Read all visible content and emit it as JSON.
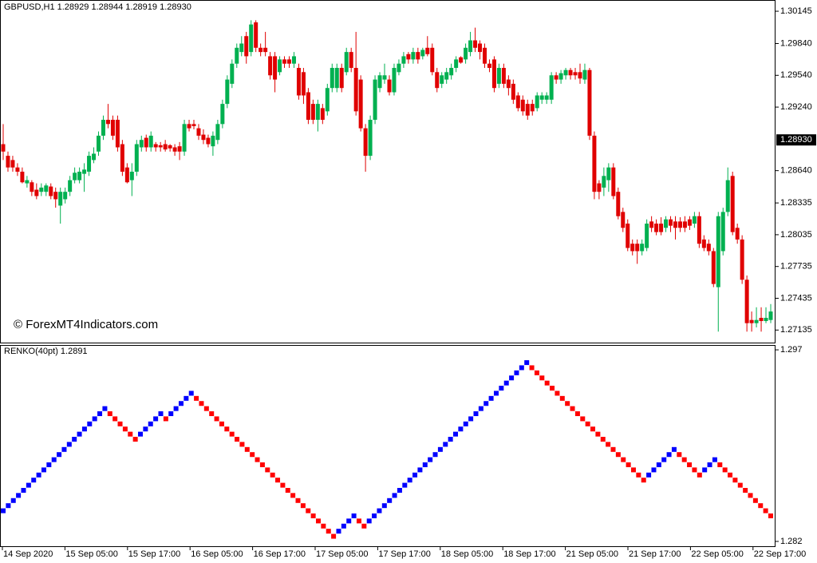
{
  "chart_data": [
    {
      "type": "candlestick",
      "title": "GBPUSD,H1 1.28929 1.28944 1.28919 1.28930",
      "watermark": "© ForexMT4Indicators.com",
      "up_color": "#00b050",
      "down_color": "#e00000",
      "ylim": [
        1.27009,
        1.30251
      ],
      "yticks": [
        1.30145,
        {
          "value": 1.2984,
          "label": "1.29840"
        },
        {
          "value": 1.2954,
          "label": "1.29540"
        },
        {
          "value": 1.2924,
          "label": "1.29240"
        },
        {
          "value": 1.2864,
          "label": "1.28640"
        },
        1.28335,
        1.28035,
        1.27735,
        1.27435,
        1.27135
      ],
      "current_price": {
        "value": 1.2893,
        "label": "1.28930"
      },
      "candles": [
        [
          1.2889,
          1.2908,
          1.2874,
          1.2882
        ],
        [
          1.2878,
          1.2882,
          1.2863,
          1.2867
        ],
        [
          1.2874,
          1.2878,
          1.2863,
          1.2867
        ],
        [
          1.2867,
          1.2871,
          1.2859,
          1.2863
        ],
        [
          1.2863,
          1.2867,
          1.2852,
          1.2853
        ],
        [
          1.2852,
          1.2859,
          1.2848,
          1.2855
        ],
        [
          1.2853,
          1.2855,
          1.284,
          1.2844
        ],
        [
          1.2846,
          1.2852,
          1.2837,
          1.284
        ],
        [
          1.2844,
          1.2852,
          1.284,
          1.2848
        ],
        [
          1.2844,
          1.2852,
          1.284,
          1.285
        ],
        [
          1.2849,
          1.2852,
          1.2837,
          1.284
        ],
        [
          1.2844,
          1.2848,
          1.2829,
          1.2837
        ],
        [
          1.2831,
          1.2848,
          1.2814,
          1.2844
        ],
        [
          1.2837,
          1.2848,
          1.2833,
          1.2844
        ],
        [
          1.2844,
          1.2859,
          1.284,
          1.2855
        ],
        [
          1.2855,
          1.2867,
          1.2852,
          1.2862
        ],
        [
          1.2855,
          1.2867,
          1.2852,
          1.2863
        ],
        [
          1.2861,
          1.2871,
          1.2844,
          1.2865
        ],
        [
          1.2863,
          1.2882,
          1.2859,
          1.2878
        ],
        [
          1.2874,
          1.2886,
          1.2871,
          1.288
        ],
        [
          1.2882,
          1.2901,
          1.2878,
          1.2897
        ],
        [
          1.2897,
          1.2916,
          1.2893,
          1.2912
        ],
        [
          1.2912,
          1.2927,
          1.2904,
          1.2908
        ],
        [
          1.2912,
          1.2916,
          1.2893,
          1.2897
        ],
        [
          1.2912,
          1.2916,
          1.2882,
          1.2886
        ],
        [
          1.2889,
          1.2893,
          1.2859,
          1.2863
        ],
        [
          1.2867,
          1.2871,
          1.2852,
          1.2853
        ],
        [
          1.2855,
          1.2871,
          1.284,
          1.2863
        ],
        [
          1.2863,
          1.2893,
          1.2859,
          1.2889
        ],
        [
          1.2886,
          1.2897,
          1.2882,
          1.2893
        ],
        [
          1.2895,
          1.2898,
          1.2882,
          1.2886
        ],
        [
          1.2886,
          1.2901,
          1.2882,
          1.2897
        ],
        [
          1.2889,
          1.2891,
          1.2882,
          1.2886
        ],
        [
          1.2888,
          1.2891,
          1.2882,
          1.2886
        ],
        [
          1.2889,
          1.2893,
          1.2882,
          1.2884
        ],
        [
          1.2888,
          1.2889,
          1.2882,
          1.2885
        ],
        [
          1.2886,
          1.2889,
          1.2878,
          1.2882
        ],
        [
          1.2887,
          1.2891,
          1.2874,
          1.2882
        ],
        [
          1.2882,
          1.2912,
          1.2878,
          1.2908
        ],
        [
          1.2908,
          1.2912,
          1.2901,
          1.2904
        ],
        [
          1.2908,
          1.2912,
          1.2903,
          1.2906
        ],
        [
          1.2904,
          1.2908,
          1.2893,
          1.2897
        ],
        [
          1.2898,
          1.2903,
          1.2889,
          1.2893
        ],
        [
          1.2895,
          1.2898,
          1.2886,
          1.2889
        ],
        [
          1.2887,
          1.2901,
          1.2878,
          1.2897
        ],
        [
          1.2893,
          1.2912,
          1.2889,
          1.2908
        ],
        [
          1.2908,
          1.2931,
          1.2904,
          1.2927
        ],
        [
          1.2927,
          1.2954,
          1.2923,
          1.295
        ],
        [
          1.2946,
          1.2969,
          1.2942,
          1.2965
        ],
        [
          1.2965,
          1.2984,
          1.2961,
          1.298
        ],
        [
          1.2976,
          1.2991,
          1.2972,
          1.2984
        ],
        [
          1.2991,
          1.2995,
          1.2965,
          1.2972
        ],
        [
          1.2976,
          1.3006,
          1.2972,
          1.3002
        ],
        [
          1.3004,
          1.3006,
          1.2976,
          1.298
        ],
        [
          1.298,
          1.2984,
          1.2972,
          1.2976
        ],
        [
          1.298,
          1.2995,
          1.2972,
          1.2976
        ],
        [
          1.2972,
          1.2976,
          1.295,
          1.2954
        ],
        [
          1.2972,
          1.2976,
          1.2938,
          1.295
        ],
        [
          1.2957,
          1.2972,
          1.2954,
          1.2969
        ],
        [
          1.2969,
          1.2972,
          1.2961,
          1.2965
        ],
        [
          1.2969,
          1.2972,
          1.2961,
          1.2965
        ],
        [
          1.2965,
          1.2976,
          1.2961,
          1.2972
        ],
        [
          1.2961,
          1.2965,
          1.2931,
          1.2935
        ],
        [
          1.2957,
          1.2961,
          1.2927,
          1.2935
        ],
        [
          1.2938,
          1.2942,
          1.2908,
          1.2912
        ],
        [
          1.2927,
          1.2931,
          1.2908,
          1.2912
        ],
        [
          1.2912,
          1.2931,
          1.2901,
          1.2927
        ],
        [
          1.2923,
          1.2927,
          1.2908,
          1.2912
        ],
        [
          1.292,
          1.2946,
          1.2916,
          1.2942
        ],
        [
          1.2942,
          1.2965,
          1.2938,
          1.2961
        ],
        [
          1.2942,
          1.2965,
          1.2938,
          1.2961
        ],
        [
          1.2961,
          1.2965,
          1.2938,
          1.2942
        ],
        [
          1.2957,
          1.298,
          1.2954,
          1.2976
        ],
        [
          1.2976,
          1.298,
          1.2957,
          1.2961
        ],
        [
          1.2961,
          1.2995,
          1.2916,
          1.292
        ],
        [
          1.295,
          1.2954,
          1.2901,
          1.2904
        ],
        [
          1.2904,
          1.2908,
          1.2863,
          1.2878
        ],
        [
          1.2878,
          1.2916,
          1.2874,
          1.2912
        ],
        [
          1.2912,
          1.2954,
          1.2908,
          1.295
        ],
        [
          1.2942,
          1.2957,
          1.2938,
          1.2954
        ],
        [
          1.295,
          1.2965,
          1.2946,
          1.2954
        ],
        [
          1.295,
          1.2954,
          1.2935,
          1.2938
        ],
        [
          1.2938,
          1.2965,
          1.2935,
          1.2961
        ],
        [
          1.2957,
          1.2969,
          1.2954,
          1.2965
        ],
        [
          1.2965,
          1.2976,
          1.2961,
          1.2972
        ],
        [
          1.2974,
          1.2976,
          1.2965,
          1.2969
        ],
        [
          1.2969,
          1.298,
          1.2965,
          1.2976
        ],
        [
          1.2976,
          1.298,
          1.2965,
          1.2969
        ],
        [
          1.2972,
          1.298,
          1.2969,
          1.2978
        ],
        [
          1.298,
          1.2991,
          1.2972,
          1.2974
        ],
        [
          1.298,
          1.2984,
          1.2954,
          1.2957
        ],
        [
          1.2957,
          1.2961,
          1.2938,
          1.2942
        ],
        [
          1.2946,
          1.2957,
          1.2942,
          1.2954
        ],
        [
          1.295,
          1.2961,
          1.2946,
          1.2957
        ],
        [
          1.2954,
          1.2965,
          1.295,
          1.2961
        ],
        [
          1.2961,
          1.2972,
          1.2957,
          1.2969
        ],
        [
          1.2971,
          1.2972,
          1.2965,
          1.2966
        ],
        [
          1.2969,
          1.2984,
          1.2965,
          1.298
        ],
        [
          1.2976,
          1.2995,
          1.2972,
          1.2987
        ],
        [
          1.2987,
          1.2999,
          1.2976,
          1.298
        ],
        [
          1.2984,
          1.2987,
          1.2969,
          1.2976
        ],
        [
          1.298,
          1.2984,
          1.2961,
          1.2965
        ],
        [
          1.2965,
          1.2969,
          1.2957,
          1.2961
        ],
        [
          1.2969,
          1.2972,
          1.2938,
          1.2942
        ],
        [
          1.2946,
          1.2965,
          1.2942,
          1.2961
        ],
        [
          1.2961,
          1.2965,
          1.2942,
          1.2946
        ],
        [
          1.295,
          1.2954,
          1.2935,
          1.2942
        ],
        [
          1.2946,
          1.295,
          1.2927,
          1.2931
        ],
        [
          1.2935,
          1.2938,
          1.292,
          1.2923
        ],
        [
          1.2931,
          1.2935,
          1.2916,
          1.292
        ],
        [
          1.2927,
          1.2931,
          1.2912,
          1.2916
        ],
        [
          1.2927,
          1.2931,
          1.2916,
          1.292
        ],
        [
          1.2923,
          1.2938,
          1.292,
          1.2935
        ],
        [
          1.2931,
          1.2938,
          1.2927,
          1.2935
        ],
        [
          1.2931,
          1.2938,
          1.2927,
          1.2935
        ],
        [
          1.2931,
          1.2957,
          1.2927,
          1.2954
        ],
        [
          1.2954,
          1.2957,
          1.2946,
          1.295
        ],
        [
          1.295,
          1.2959,
          1.2946,
          1.2956
        ],
        [
          1.2954,
          1.2961,
          1.295,
          1.2959
        ],
        [
          1.2959,
          1.2961,
          1.295,
          1.2954
        ],
        [
          1.2957,
          1.2961,
          1.295,
          1.2954
        ],
        [
          1.2957,
          1.2965,
          1.2946,
          1.2951
        ],
        [
          1.295,
          1.2965,
          1.2946,
          1.2959
        ],
        [
          1.2959,
          1.2961,
          1.2893,
          1.2897
        ],
        [
          1.2897,
          1.2901,
          1.2837,
          1.2844
        ],
        [
          1.2852,
          1.2855,
          1.2837,
          1.2844
        ],
        [
          1.2848,
          1.2867,
          1.284,
          1.2859
        ],
        [
          1.2855,
          1.2871,
          1.2844,
          1.2867
        ],
        [
          1.2867,
          1.2871,
          1.2837,
          1.284
        ],
        [
          1.2844,
          1.2848,
          1.2818,
          1.2821
        ],
        [
          1.2825,
          1.2829,
          1.2806,
          1.281
        ],
        [
          1.2814,
          1.2818,
          1.2788,
          1.2791
        ],
        [
          1.2795,
          1.2799,
          1.2784,
          1.2788
        ],
        [
          1.2795,
          1.2799,
          1.2776,
          1.2788
        ],
        [
          1.2788,
          1.2799,
          1.2784,
          1.2795
        ],
        [
          1.2791,
          1.2818,
          1.2788,
          1.2814
        ],
        [
          1.2816,
          1.2821,
          1.2806,
          1.281
        ],
        [
          1.2814,
          1.2818,
          1.2803,
          1.2806
        ],
        [
          1.2814,
          1.282,
          1.2803,
          1.2806
        ],
        [
          1.281,
          1.2821,
          1.2806,
          1.2818
        ],
        [
          1.2818,
          1.2821,
          1.2806,
          1.2812
        ],
        [
          1.2816,
          1.2821,
          1.2799,
          1.281
        ],
        [
          1.2816,
          1.282,
          1.2806,
          1.281
        ],
        [
          1.2816,
          1.2821,
          1.2806,
          1.281
        ],
        [
          1.2818,
          1.2821,
          1.2808,
          1.2812
        ],
        [
          1.2814,
          1.2825,
          1.281,
          1.2821
        ],
        [
          1.2821,
          1.2825,
          1.2791,
          1.2795
        ],
        [
          1.2799,
          1.2803,
          1.2788,
          1.2791
        ],
        [
          1.2795,
          1.2799,
          1.2784,
          1.2788
        ],
        [
          1.2788,
          1.2791,
          1.2754,
          1.2757
        ],
        [
          1.2754,
          1.2825,
          1.2712,
          1.2821
        ],
        [
          1.2788,
          1.2829,
          1.2784,
          1.2825
        ],
        [
          1.2825,
          1.2867,
          1.2821,
          1.2855
        ],
        [
          1.2859,
          1.2863,
          1.2803,
          1.2806
        ],
        [
          1.281,
          1.2814,
          1.2795,
          1.2799
        ],
        [
          1.2799,
          1.2803,
          1.2757,
          1.2761
        ],
        [
          1.2761,
          1.2765,
          1.2712,
          1.272
        ],
        [
          1.2723,
          1.2731,
          1.2712,
          1.272
        ],
        [
          1.272,
          1.2735,
          1.2716,
          1.2723
        ],
        [
          1.2725,
          1.2735,
          1.2712,
          1.2722
        ],
        [
          1.2722,
          1.2735,
          1.272,
          1.2725
        ],
        [
          1.2723,
          1.2738,
          1.272,
          1.2731
        ]
      ]
    },
    {
      "type": "renko",
      "title": "RENKO(40pt) 1.2891",
      "up_color": "#0000ff",
      "down_color": "#ff0000",
      "ylim": [
        1.28156,
        1.29738
      ],
      "yticks": [
        1.297,
        1.282
      ],
      "x_labels": [
        "14 Sep 2020",
        "15 Sep 05:00",
        "15 Sep 17:00",
        "16 Sep 05:00",
        "16 Sep 17:00",
        "17 Sep 05:00",
        "17 Sep 17:00",
        "18 Sep 05:00",
        "18 Sep 17:00",
        "21 Sep 05:00",
        "21 Sep 17:00",
        "22 Sep 05:00",
        "22 Sep 17:00"
      ],
      "values": [
        1.2844,
        1.2848,
        1.2852,
        1.2856,
        1.286,
        1.2864,
        1.2868,
        1.2872,
        1.2876,
        1.288,
        1.2884,
        1.2888,
        1.2892,
        1.2896,
        1.29,
        1.2904,
        1.2908,
        1.2912,
        1.2916,
        1.292,
        1.2924,
        1.292,
        1.2916,
        1.2912,
        1.2908,
        1.2904,
        1.29,
        1.2904,
        1.2908,
        1.2912,
        1.2916,
        1.292,
        1.2916,
        1.292,
        1.2924,
        1.2928,
        1.2932,
        1.2936,
        1.2932,
        1.2928,
        1.2924,
        1.292,
        1.2916,
        1.2912,
        1.2908,
        1.2904,
        1.29,
        1.2896,
        1.2892,
        1.2888,
        1.2884,
        1.288,
        1.2876,
        1.2872,
        1.2868,
        1.2864,
        1.286,
        1.2856,
        1.2852,
        1.2848,
        1.2844,
        1.284,
        1.2836,
        1.2832,
        1.2828,
        1.2824,
        1.2828,
        1.2832,
        1.2836,
        1.284,
        1.2836,
        1.2832,
        1.2836,
        1.284,
        1.2844,
        1.2848,
        1.2852,
        1.2856,
        1.286,
        1.2864,
        1.2868,
        1.2872,
        1.2876,
        1.288,
        1.2884,
        1.2888,
        1.2892,
        1.2896,
        1.29,
        1.2904,
        1.2908,
        1.2912,
        1.2916,
        1.292,
        1.2924,
        1.2928,
        1.2932,
        1.2936,
        1.294,
        1.2944,
        1.2948,
        1.2952,
        1.2956,
        1.296,
        1.2956,
        1.2952,
        1.2948,
        1.2944,
        1.294,
        1.2936,
        1.2932,
        1.2928,
        1.2924,
        1.292,
        1.2916,
        1.2912,
        1.2908,
        1.2904,
        1.29,
        1.2896,
        1.2892,
        1.2888,
        1.2884,
        1.288,
        1.2876,
        1.2872,
        1.2868,
        1.2872,
        1.2876,
        1.288,
        1.2884,
        1.2888,
        1.2892,
        1.2888,
        1.2884,
        1.288,
        1.2876,
        1.2872,
        1.2876,
        1.288,
        1.2884,
        1.288,
        1.2876,
        1.2872,
        1.2868,
        1.2864,
        1.286,
        1.2856,
        1.2852,
        1.2848,
        1.2844,
        1.284
      ]
    }
  ]
}
